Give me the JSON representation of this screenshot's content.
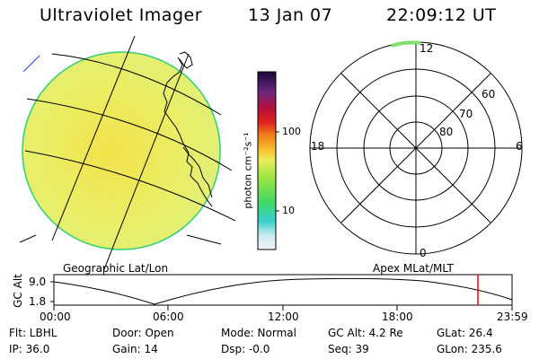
{
  "header": {
    "title": "Ultraviolet Imager",
    "date": "13 Jan 07",
    "time": "22:09:12 UT"
  },
  "colorbar": {
    "unit_label": "photon cm⁻²s⁻¹",
    "ticks": [
      "100",
      "10"
    ]
  },
  "panels": {
    "left_label": "Geographic Lat/Lon",
    "right_label": "Apex MLat/MLT"
  },
  "polar": {
    "mlt_labels": {
      "top": "12",
      "left": "18",
      "right": "6",
      "bottom": "0"
    },
    "lat_labels": [
      "60",
      "70",
      "80"
    ]
  },
  "altitude_plot": {
    "ylabel": "GC Alt",
    "yticks": [
      "9.0",
      "1.8"
    ],
    "xticks": [
      "00:00",
      "06:00",
      "12:00",
      "18:00",
      "23:59"
    ]
  },
  "info": {
    "row1": [
      "Flt: LBHL",
      "Door: Open",
      "Mode: Normal",
      "GC Alt: 4.2 Re",
      "GLat:  26.4"
    ],
    "row2": [
      "IP: 36.0",
      "Gain: 14",
      "Dsp:   -0.0",
      "Seq: 39",
      "GLon: 235.6"
    ]
  },
  "colors": {
    "disk_fill": "#e6ef6a",
    "disk_edge": "#22cc66",
    "marker": "#ff0000"
  }
}
